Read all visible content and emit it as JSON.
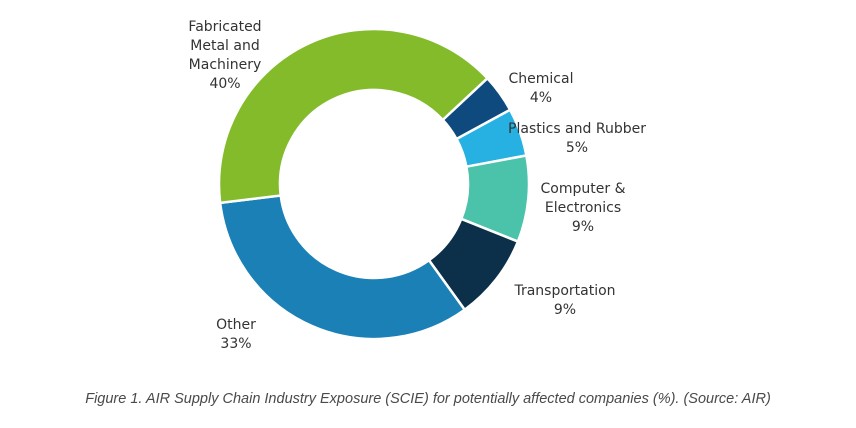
{
  "chart_data": {
    "type": "pie",
    "subtype": "donut",
    "title": "",
    "start_angle_deg": 47,
    "slices": [
      {
        "label": "Chemical",
        "label_lines": [
          "Chemical"
        ],
        "value": 4,
        "value_label": "4%",
        "color": "#0f4a7e"
      },
      {
        "label": "Plastics and Rubber",
        "label_lines": [
          "Plastics and Rubber"
        ],
        "value": 5,
        "value_label": "5%",
        "color": "#27b1e2"
      },
      {
        "label": "Computer & Electronics",
        "label_lines": [
          "Computer &",
          "Electronics"
        ],
        "value": 9,
        "value_label": "9%",
        "color": "#4bc2aa"
      },
      {
        "label": "Transportation",
        "label_lines": [
          "Transportation"
        ],
        "value": 9,
        "value_label": "9%",
        "color": "#0c3049"
      },
      {
        "label": "Other",
        "label_lines": [
          "Other"
        ],
        "value": 33,
        "value_label": "33%",
        "color": "#1b80b6"
      },
      {
        "label": "Fabricated Metal and Machinery",
        "label_lines": [
          "Fabricated",
          "Metal and",
          "Machinery"
        ],
        "value": 40,
        "value_label": "40%",
        "color": "#83bb2b"
      }
    ]
  },
  "caption": "Figure 1. AIR Supply Chain Industry Exposure (SCIE) for potentially affected companies (%). (Source: AIR)"
}
